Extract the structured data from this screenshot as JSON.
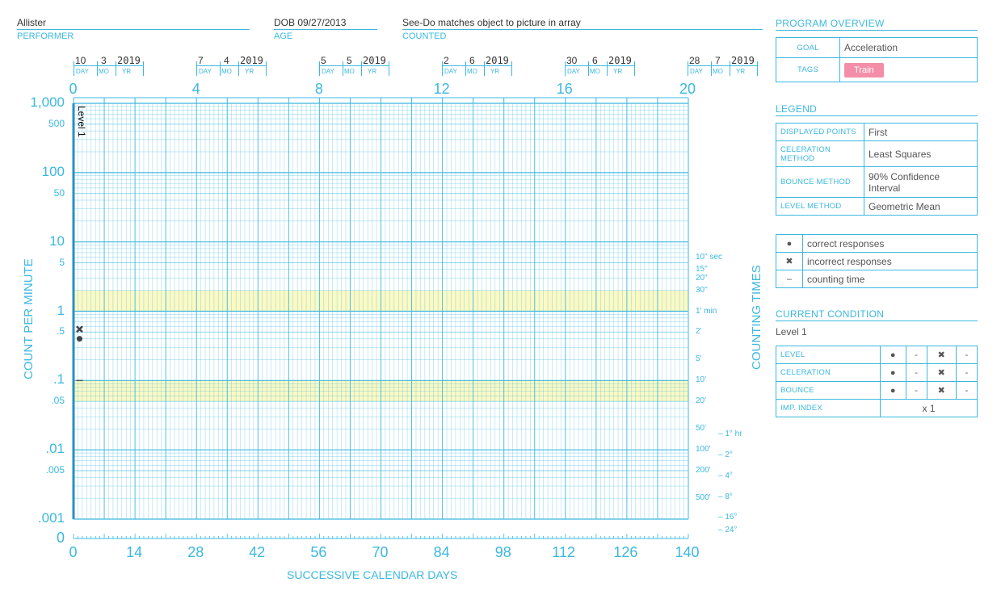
{
  "header": {
    "performer_name": "Allister",
    "performer_label": "PERFORMER",
    "dob": "DOB 09/27/2013",
    "age_label": "AGE",
    "counted_value": "See-Do matches object to picture in array",
    "counted_label": "COUNTED"
  },
  "dates": [
    {
      "day": "10",
      "mo": "3",
      "yr": "2019"
    },
    {
      "day": "7",
      "mo": "4",
      "yr": "2019"
    },
    {
      "day": "5",
      "mo": "5",
      "yr": "2019"
    },
    {
      "day": "2",
      "mo": "6",
      "yr": "2019"
    },
    {
      "day": "30",
      "mo": "6",
      "yr": "2019"
    },
    {
      "day": "28",
      "mo": "7",
      "yr": "2019"
    }
  ],
  "date_labels": {
    "day": "DAY",
    "mo": "MO",
    "yr": "YR"
  },
  "chart_data": {
    "type": "scatter",
    "top_axis_ticks": [
      "0",
      "4",
      "8",
      "12",
      "16",
      "20"
    ],
    "bottom_axis_ticks": [
      "0",
      "14",
      "28",
      "42",
      "56",
      "70",
      "84",
      "98",
      "112",
      "126",
      "140"
    ],
    "xlabel": "SUCCESSIVE CALENDAR DAYS",
    "ylabel": "COUNT PER MINUTE",
    "right_label": "COUNTING TIMES",
    "y_scale": "log",
    "ylim": [
      0.001,
      1000
    ],
    "xlim": [
      0,
      140
    ],
    "y_ticks": [
      "1,000",
      "500",
      "100",
      "50",
      "10",
      "5",
      "1",
      ".5",
      ".1",
      ".05",
      ".01",
      ".005",
      ".001"
    ],
    "y_zero_label": "0",
    "counting_times_inner": [
      "10\" sec",
      "15\"",
      "20\"",
      "30\"",
      "1' min",
      "2'",
      "5'",
      "10'",
      "20'",
      "50'",
      "100'",
      "200'",
      "500'"
    ],
    "counting_times_outer": [
      "1° hr",
      "2°",
      "4°",
      "8°",
      "16°",
      "24°"
    ],
    "phase_label": "Level 1",
    "highlight_bands": [
      {
        "from": 1,
        "to": 2
      },
      {
        "from": 0.05,
        "to": 0.1
      }
    ],
    "highlight_color": "#fbf9c4",
    "grid_color": "#3bb8e0",
    "series": [
      {
        "name": "correct responses",
        "symbol": "dot",
        "points": [
          {
            "x": 1,
            "y": 0.4
          }
        ]
      },
      {
        "name": "incorrect responses",
        "symbol": "x",
        "points": [
          {
            "x": 1,
            "y": 0.55
          }
        ]
      },
      {
        "name": "counting time",
        "symbol": "dash",
        "points": [
          {
            "x": 1,
            "y": 0.1
          }
        ]
      }
    ]
  },
  "panel": {
    "overview_title": "PROGRAM OVERVIEW",
    "goal_key": "GOAL",
    "goal_val": "Acceleration",
    "tags_key": "TAGS",
    "tag_val": "Train",
    "legend_title": "LEGEND",
    "legend_rows": [
      {
        "k": "DISPLAYED POINTS",
        "v": "First"
      },
      {
        "k": "CELERATION METHOD",
        "v": "Least Squares"
      },
      {
        "k": "BOUNCE METHOD",
        "v": "90% Confidence Interval"
      },
      {
        "k": "LEVEL METHOD",
        "v": "Geometric Mean"
      }
    ],
    "symbols": [
      {
        "sym": "●",
        "label": "correct responses"
      },
      {
        "sym": "✖",
        "label": "incorrect responses"
      },
      {
        "sym": "–",
        "label": "counting time"
      }
    ],
    "condition_title": "CURRENT CONDITION",
    "condition_name": "Level 1",
    "condition_rows": [
      {
        "k": "LEVEL",
        "a": "●",
        "b": "-",
        "c": "✖",
        "d": "-"
      },
      {
        "k": "CELERATION",
        "a": "●",
        "b": "-",
        "c": "✖",
        "d": "-"
      },
      {
        "k": "BOUNCE",
        "a": "●",
        "b": "-",
        "c": "✖",
        "d": "-"
      }
    ],
    "imp_key": "IMP. INDEX",
    "imp_val": "x 1"
  },
  "colors": {
    "accent": "#3bb8e0",
    "tag": "#f48ea8",
    "band": "#fbf9c4"
  }
}
